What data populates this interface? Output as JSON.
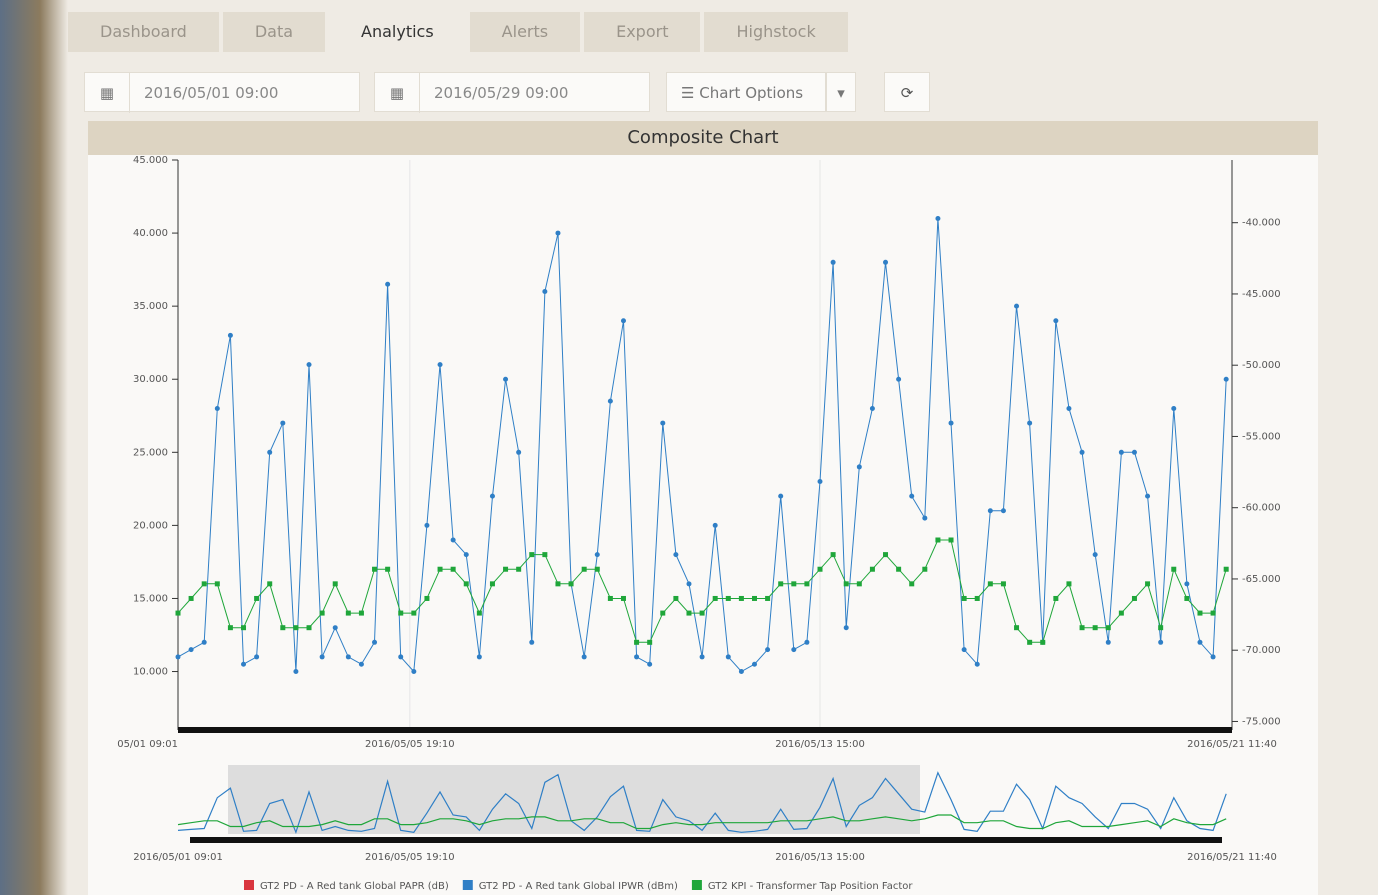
{
  "tabs": [
    "Dashboard",
    "Data",
    "Analytics",
    "Alerts",
    "Export",
    "Highstock"
  ],
  "toolbar": {
    "start": "2016/05/01 09:00",
    "end": "2016/05/29 09:00",
    "options": "Chart Options"
  },
  "panel": {
    "title": "Composite Chart"
  },
  "chart_data": {
    "type": "line",
    "x": [
      "2016/05/01 09:00",
      "2016/05/01 15:00",
      "2016/05/01 21:00",
      "2016/05/02 03:00",
      "2016/05/02 09:00",
      "2016/05/02 15:00",
      "2016/05/02 21:00",
      "2016/05/03 03:00",
      "2016/05/03 09:00",
      "2016/05/03 15:00",
      "2016/05/03 21:00",
      "2016/05/04 03:00",
      "2016/05/04 09:00",
      "2016/05/04 15:00",
      "2016/05/04 21:00",
      "2016/05/05 03:00",
      "2016/05/05 09:00",
      "2016/05/05 15:00",
      "2016/05/05 21:00",
      "2016/05/06 03:00",
      "2016/05/06 09:00",
      "2016/05/06 15:00",
      "2016/05/06 21:00",
      "2016/05/07 03:00",
      "2016/05/07 09:00",
      "2016/05/07 15:00",
      "2016/05/07 21:00",
      "2016/05/08 03:00",
      "2016/05/08 09:00",
      "2016/05/08 15:00",
      "2016/05/08 21:00",
      "2016/05/09 03:00",
      "2016/05/09 09:00",
      "2016/05/09 15:00",
      "2016/05/09 21:00",
      "2016/05/10 03:00",
      "2016/05/10 09:00",
      "2016/05/10 15:00",
      "2016/05/10 21:00",
      "2016/05/11 03:00",
      "2016/05/11 09:00",
      "2016/05/11 15:00",
      "2016/05/11 21:00",
      "2016/05/12 03:00",
      "2016/05/12 09:00",
      "2016/05/12 15:00",
      "2016/05/12 21:00",
      "2016/05/13 03:00",
      "2016/05/13 09:00",
      "2016/05/13 15:00",
      "2016/05/13 21:00",
      "2016/05/14 03:00",
      "2016/05/14 09:00",
      "2016/05/14 15:00",
      "2016/05/14 21:00",
      "2016/05/15 03:00",
      "2016/05/15 09:00",
      "2016/05/15 15:00",
      "2016/05/15 21:00",
      "2016/05/16 03:00",
      "2016/05/16 09:00",
      "2016/05/16 15:00",
      "2016/05/16 21:00",
      "2016/05/17 03:00",
      "2016/05/17 09:00",
      "2016/05/17 15:00",
      "2016/05/17 21:00",
      "2016/05/18 03:00",
      "2016/05/18 09:00",
      "2016/05/18 15:00",
      "2016/05/18 21:00",
      "2016/05/19 03:00",
      "2016/05/19 09:00",
      "2016/05/19 15:00",
      "2016/05/19 21:00",
      "2016/05/20 03:00",
      "2016/05/20 09:00",
      "2016/05/20 15:00",
      "2016/05/20 21:00",
      "2016/05/21 03:00",
      "2016/05/21 09:00"
    ],
    "series": [
      {
        "name": "GT2 PD - A Red tank Global PAPR (dB)",
        "color": "#d9363e",
        "axis": "y2",
        "values": [
          null,
          null,
          null,
          null,
          null,
          null,
          null,
          null,
          null,
          null,
          null,
          null,
          null,
          null,
          null,
          null,
          null,
          null,
          null,
          null,
          null,
          null,
          null,
          null,
          null,
          null,
          null,
          null,
          null,
          null,
          null,
          null,
          null,
          null,
          null,
          null,
          null,
          null,
          null,
          null,
          null,
          null,
          null,
          null,
          null,
          null,
          null,
          null,
          null,
          null,
          null,
          null,
          null,
          null,
          null,
          null,
          null,
          null,
          null,
          null,
          null,
          null,
          null,
          null,
          null,
          null,
          null,
          null,
          null,
          null,
          null,
          null,
          null,
          null,
          null,
          null,
          null,
          null,
          null,
          null,
          null
        ]
      },
      {
        "name": "GT2 PD - A Red tank Global IPWR (dBm)",
        "color": "#2f7fc6",
        "values": [
          11,
          11.5,
          12,
          28,
          33,
          10.5,
          11,
          25,
          27,
          10,
          31,
          11,
          13,
          11,
          10.5,
          12,
          36.5,
          11,
          10,
          20,
          31,
          19,
          18,
          11,
          22,
          30,
          25,
          12,
          36,
          40,
          16,
          11,
          18,
          28.5,
          34,
          11,
          10.5,
          27,
          18,
          16,
          11,
          20,
          11,
          10,
          10.5,
          11.5,
          22,
          11.5,
          12,
          23,
          38,
          13,
          24,
          28,
          38,
          30,
          22,
          20.5,
          41,
          27,
          11.5,
          10.5,
          21,
          21,
          35,
          27,
          12,
          34,
          28,
          25,
          18,
          12,
          25,
          25,
          22,
          12,
          28,
          16,
          12,
          11,
          30
        ]
      },
      {
        "name": "GT2 KPI - Transformer Tap Position Factor",
        "color": "#1fa63a",
        "values": [
          14,
          15,
          16,
          16,
          13,
          13,
          15,
          16,
          13,
          13,
          13,
          14,
          16,
          14,
          14,
          17,
          17,
          14,
          14,
          15,
          17,
          17,
          16,
          14,
          16,
          17,
          17,
          18,
          18,
          16,
          16,
          17,
          17,
          15,
          15,
          12,
          12,
          14,
          15,
          14,
          14,
          15,
          15,
          15,
          15,
          15,
          16,
          16,
          16,
          17,
          18,
          16,
          16,
          17,
          18,
          17,
          16,
          17,
          19,
          19,
          15,
          15,
          16,
          16,
          13,
          12,
          12,
          15,
          16,
          13,
          13,
          13,
          14,
          15,
          16,
          13,
          17,
          15,
          14,
          14,
          17
        ]
      }
    ],
    "xlim": [
      "2016/05/01 09:00",
      "2016/05/21 11:40"
    ],
    "xticks": [
      {
        "value": "2016/05/01 09:01",
        "label": "05/01 09:01"
      },
      {
        "value": "2016/05/05 19:10",
        "label": "2016/05/05 19:10"
      },
      {
        "value": "2016/05/13 15:00",
        "label": "2016/05/13 15:00"
      },
      {
        "value": "2016/05/21 11:40",
        "label": "2016/05/21 11:40"
      }
    ],
    "ylim": [
      6,
      45
    ],
    "yticks": [
      {
        "value": 10,
        "label": "10.000"
      },
      {
        "value": 15,
        "label": "15.000"
      },
      {
        "value": 20,
        "label": "20.000"
      },
      {
        "value": 25,
        "label": "25.000"
      },
      {
        "value": 30,
        "label": "30.000"
      },
      {
        "value": 35,
        "label": "35.000"
      },
      {
        "value": 40,
        "label": "40.000"
      },
      {
        "value": 45,
        "label": "45.000"
      }
    ],
    "y2lim": [
      -75.6,
      -35.6
    ],
    "y2ticks": [
      {
        "value": -75,
        "label": "-75.000"
      },
      {
        "value": -70,
        "label": "-70.000"
      },
      {
        "value": -65,
        "label": "-65.000"
      },
      {
        "value": -60,
        "label": "-60.000"
      },
      {
        "value": -55,
        "label": "-55.000"
      },
      {
        "value": -50,
        "label": "-50.000"
      },
      {
        "value": -45,
        "label": "-45.000"
      },
      {
        "value": -40,
        "label": "-40.000"
      }
    ],
    "grid": true,
    "navigator": {
      "xticks": [
        {
          "value": "2016/05/01 09:01",
          "label": "2016/05/01 09:01"
        },
        {
          "value": "2016/05/05 19:10",
          "label": "2016/05/05 19:10"
        },
        {
          "value": "2016/05/13 15:00",
          "label": "2016/05/13 15:00"
        },
        {
          "value": "2016/05/21 11:40",
          "label": "2016/05/21 11:40"
        }
      ]
    }
  }
}
